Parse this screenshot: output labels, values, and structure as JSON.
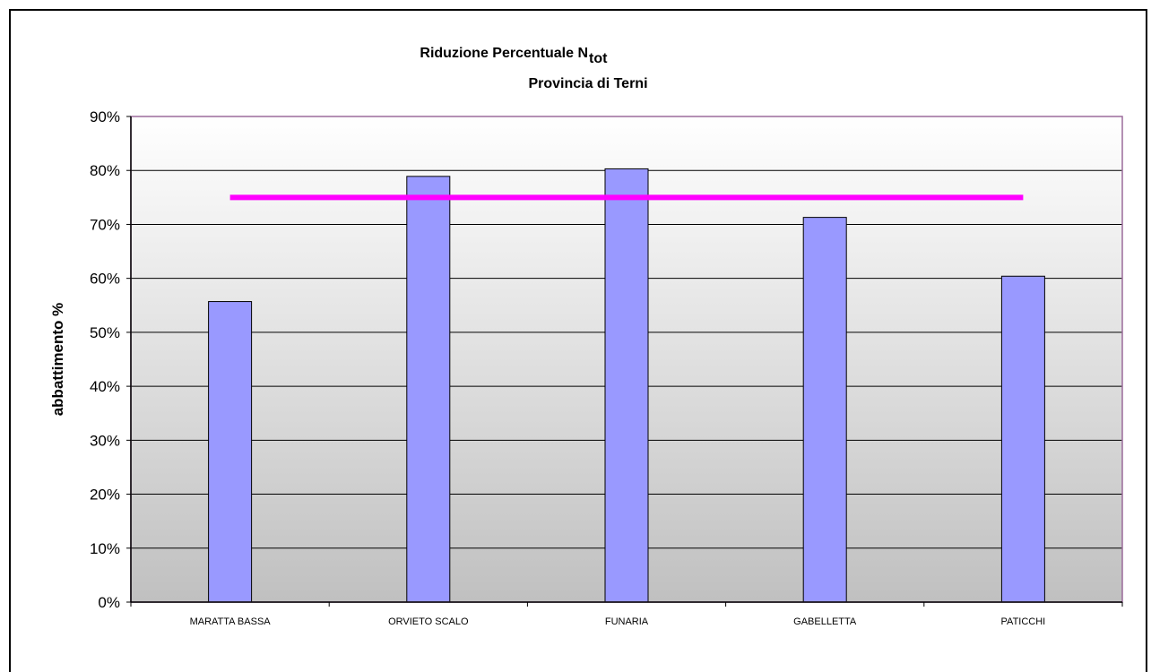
{
  "chart_data": {
    "type": "bar",
    "title": "Riduzione Percentuale N",
    "title_subscript": "tot",
    "subtitle": "Provincia di Terni",
    "ylabel": "abbattimento %",
    "xlabel": "",
    "categories": [
      "MARATTA BASSA",
      "ORVIETO SCALO",
      "FUNARIA",
      "GABELLETTA",
      "PATICCHI"
    ],
    "series": [
      {
        "values": [
          55.7,
          78.9,
          80.3,
          71.3,
          60.4
        ],
        "color": "#9999ff"
      }
    ],
    "reference_line": {
      "value": 75,
      "color": "#ff00ff"
    },
    "ylim": [
      0,
      90
    ],
    "yticks": [
      "0%",
      "10%",
      "20%",
      "30%",
      "40%",
      "50%",
      "60%",
      "70%",
      "80%",
      "90%"
    ],
    "grid": true,
    "legend": false,
    "plot_background": "gradient white to gray",
    "plot_border_color": "#9b6b9b"
  }
}
